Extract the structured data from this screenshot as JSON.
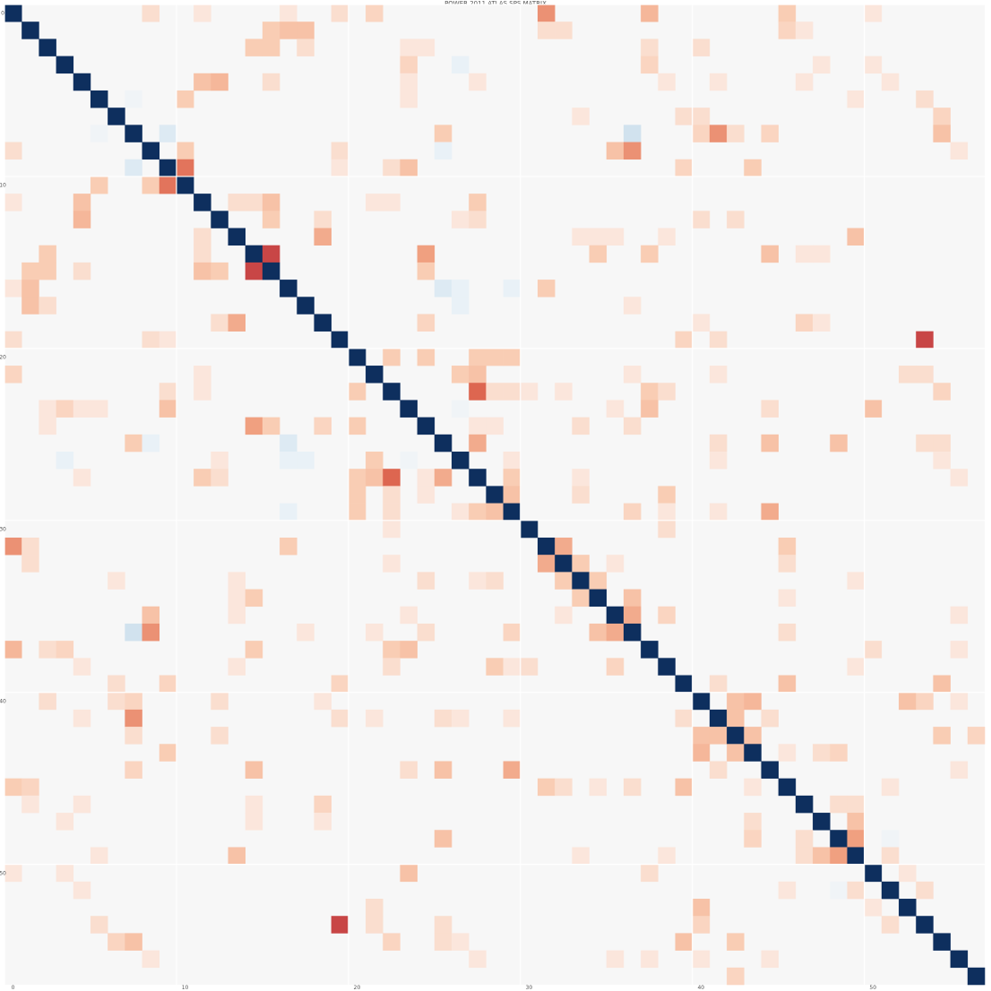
{
  "chart_data": {
    "type": "heatmap",
    "title": "POWER 2011 ATLAS SPS MATRIX",
    "n": 57,
    "x_ticks": [
      "0",
      "10",
      "20",
      "30",
      "40",
      "50"
    ],
    "y_ticks": [
      "0",
      "10",
      "20",
      "30",
      "40",
      "50"
    ],
    "diagonal_value": 1.0,
    "vlim": [
      -1,
      1
    ],
    "colorscale": [
      "#0e2f5e",
      "#d1e5f0",
      "#f7f7f7",
      "#fddbc7",
      "#f4a582",
      "#d6604d",
      "#c93f3f"
    ],
    "colors": {
      "background": "#f7f7f7",
      "diagonal": "#0e2f5e",
      "grid": "#ffffff"
    },
    "note_cells": "Off-diagonal values listed as [row, col, value]; symmetric. Unlisted cells are 0.",
    "cells": [
      [
        0,
        8,
        0.2
      ],
      [
        0,
        11,
        0.15
      ],
      [
        0,
        16,
        0.15
      ],
      [
        0,
        19,
        0.2
      ],
      [
        0,
        21,
        0.25
      ],
      [
        0,
        31,
        0.55
      ],
      [
        0,
        37,
        0.4
      ],
      [
        0,
        45,
        0.3
      ],
      [
        0,
        50,
        0.15
      ],
      [
        1,
        15,
        0.3
      ],
      [
        1,
        16,
        0.35
      ],
      [
        1,
        17,
        0.35
      ],
      [
        1,
        31,
        0.2
      ],
      [
        1,
        32,
        0.2
      ],
      [
        1,
        45,
        0.25
      ],
      [
        1,
        46,
        0.15
      ],
      [
        2,
        14,
        0.3
      ],
      [
        2,
        15,
        0.3
      ],
      [
        2,
        17,
        0.2
      ],
      [
        2,
        23,
        0.15
      ],
      [
        2,
        24,
        0.15
      ],
      [
        2,
        37,
        0.2
      ],
      [
        2,
        40,
        0.2
      ],
      [
        3,
        23,
        0.25
      ],
      [
        3,
        26,
        -0.1
      ],
      [
        3,
        37,
        0.25
      ],
      [
        3,
        47,
        0.15
      ],
      [
        3,
        50,
        0.15
      ],
      [
        4,
        11,
        0.35
      ],
      [
        4,
        12,
        0.4
      ],
      [
        4,
        15,
        0.2
      ],
      [
        4,
        23,
        0.15
      ],
      [
        4,
        27,
        0.15
      ],
      [
        4,
        38,
        0.15
      ],
      [
        4,
        41,
        0.15
      ],
      [
        4,
        46,
        0.15
      ],
      [
        4,
        51,
        0.15
      ],
      [
        5,
        7,
        -0.05
      ],
      [
        5,
        10,
        0.3
      ],
      [
        5,
        23,
        0.15
      ],
      [
        5,
        49,
        0.15
      ],
      [
        5,
        53,
        0.2
      ],
      [
        6,
        33,
        0.15
      ],
      [
        6,
        39,
        0.2
      ],
      [
        6,
        40,
        0.2
      ],
      [
        6,
        54,
        0.25
      ],
      [
        7,
        9,
        -0.15
      ],
      [
        7,
        25,
        0.3
      ],
      [
        7,
        36,
        -0.2
      ],
      [
        7,
        40,
        0.25
      ],
      [
        7,
        41,
        0.55
      ],
      [
        7,
        42,
        0.2
      ],
      [
        7,
        44,
        0.25
      ],
      [
        7,
        54,
        0.35
      ],
      [
        8,
        10,
        0.3
      ],
      [
        8,
        19,
        0.2
      ],
      [
        8,
        25,
        -0.1
      ],
      [
        8,
        35,
        0.35
      ],
      [
        8,
        36,
        0.55
      ],
      [
        8,
        55,
        0.15
      ],
      [
        9,
        10,
        0.65
      ],
      [
        9,
        19,
        0.15
      ],
      [
        9,
        22,
        0.2
      ],
      [
        9,
        23,
        0.35
      ],
      [
        9,
        39,
        0.25
      ],
      [
        9,
        43,
        0.3
      ],
      [
        11,
        13,
        0.2
      ],
      [
        11,
        14,
        0.2
      ],
      [
        11,
        15,
        0.35
      ],
      [
        11,
        21,
        0.15
      ],
      [
        11,
        22,
        0.15
      ],
      [
        11,
        27,
        0.3
      ],
      [
        12,
        15,
        0.3
      ],
      [
        12,
        18,
        0.2
      ],
      [
        12,
        26,
        0.15
      ],
      [
        12,
        27,
        0.2
      ],
      [
        12,
        40,
        0.2
      ],
      [
        12,
        42,
        0.2
      ],
      [
        13,
        18,
        0.45
      ],
      [
        13,
        33,
        0.15
      ],
      [
        13,
        34,
        0.15
      ],
      [
        13,
        35,
        0.15
      ],
      [
        13,
        38,
        0.15
      ],
      [
        13,
        49,
        0.35
      ],
      [
        14,
        15,
        0.85
      ],
      [
        14,
        24,
        0.5
      ],
      [
        14,
        34,
        0.3
      ],
      [
        14,
        37,
        0.3
      ],
      [
        14,
        44,
        0.35
      ],
      [
        14,
        46,
        0.15
      ],
      [
        14,
        47,
        0.15
      ],
      [
        15,
        24,
        0.3
      ],
      [
        16,
        25,
        -0.15
      ],
      [
        16,
        26,
        -0.1
      ],
      [
        16,
        29,
        -0.1
      ],
      [
        16,
        31,
        0.3
      ],
      [
        17,
        26,
        -0.1
      ],
      [
        17,
        36,
        0.15
      ],
      [
        18,
        24,
        0.25
      ],
      [
        18,
        40,
        0.15
      ],
      [
        18,
        46,
        0.25
      ],
      [
        18,
        47,
        0.15
      ],
      [
        19,
        39,
        0.25
      ],
      [
        19,
        41,
        0.2
      ],
      [
        19,
        53,
        0.85
      ],
      [
        20,
        22,
        0.3
      ],
      [
        20,
        24,
        0.3
      ],
      [
        20,
        27,
        0.3
      ],
      [
        20,
        28,
        0.3
      ],
      [
        20,
        29,
        0.3
      ],
      [
        21,
        26,
        0.3
      ],
      [
        21,
        27,
        0.35
      ],
      [
        21,
        36,
        0.15
      ],
      [
        21,
        41,
        0.15
      ],
      [
        21,
        52,
        0.2
      ],
      [
        21,
        53,
        0.2
      ],
      [
        22,
        27,
        0.7
      ],
      [
        22,
        28,
        0.2
      ],
      [
        22,
        29,
        0.2
      ],
      [
        22,
        30,
        0.15
      ],
      [
        22,
        32,
        0.15
      ],
      [
        22,
        37,
        0.3
      ],
      [
        22,
        38,
        0.2
      ],
      [
        22,
        54,
        0.25
      ],
      [
        23,
        26,
        -0.05
      ],
      [
        23,
        35,
        0.15
      ],
      [
        23,
        37,
        0.35
      ],
      [
        23,
        44,
        0.2
      ],
      [
        23,
        50,
        0.35
      ],
      [
        24,
        27,
        0.15
      ],
      [
        24,
        28,
        0.15
      ],
      [
        24,
        33,
        0.2
      ],
      [
        24,
        36,
        0.2
      ],
      [
        25,
        27,
        0.45
      ],
      [
        25,
        41,
        0.2
      ],
      [
        25,
        44,
        0.35
      ],
      [
        25,
        48,
        0.35
      ],
      [
        25,
        53,
        0.2
      ],
      [
        25,
        54,
        0.2
      ],
      [
        26,
        29,
        0.15
      ],
      [
        26,
        41,
        0.15
      ],
      [
        26,
        54,
        0.15
      ],
      [
        27,
        29,
        0.3
      ],
      [
        27,
        33,
        0.15
      ],
      [
        27,
        55,
        0.15
      ],
      [
        28,
        29,
        0.35
      ],
      [
        28,
        33,
        0.2
      ],
      [
        28,
        38,
        0.3
      ],
      [
        29,
        36,
        0.25
      ],
      [
        29,
        38,
        0.15
      ],
      [
        29,
        41,
        0.15
      ],
      [
        29,
        44,
        0.45
      ],
      [
        30,
        38,
        0.2
      ],
      [
        31,
        32,
        0.45
      ],
      [
        31,
        45,
        0.3
      ],
      [
        32,
        33,
        0.3
      ],
      [
        32,
        35,
        0.15
      ],
      [
        32,
        45,
        0.2
      ],
      [
        33,
        34,
        0.3
      ],
      [
        33,
        49,
        0.15
      ],
      [
        34,
        36,
        0.35
      ],
      [
        34,
        45,
        0.15
      ],
      [
        35,
        36,
        0.45
      ],
      [
        35,
        38,
        0.25
      ],
      [
        35,
        55,
        0.15
      ],
      [
        36,
        45,
        0.2
      ],
      [
        37,
        50,
        0.2
      ],
      [
        37,
        55,
        0.15
      ],
      [
        38,
        49,
        0.15
      ],
      [
        39,
        41,
        0.2
      ],
      [
        39,
        45,
        0.35
      ],
      [
        39,
        54,
        0.35
      ],
      [
        40,
        42,
        0.35
      ],
      [
        40,
        43,
        0.4
      ],
      [
        40,
        52,
        0.35
      ],
      [
        40,
        53,
        0.25
      ],
      [
        40,
        55,
        0.15
      ],
      [
        41,
        42,
        0.35
      ],
      [
        41,
        44,
        0.2
      ],
      [
        42,
        43,
        0.35
      ],
      [
        42,
        54,
        0.3
      ],
      [
        42,
        56,
        0.25
      ],
      [
        43,
        45,
        0.15
      ],
      [
        43,
        47,
        0.2
      ],
      [
        43,
        48,
        0.25
      ],
      [
        44,
        55,
        0.15
      ],
      [
        45,
        51,
        0.15
      ],
      [
        46,
        48,
        0.2
      ],
      [
        46,
        49,
        0.2
      ],
      [
        47,
        49,
        0.35
      ],
      [
        48,
        49,
        0.5
      ],
      [
        48,
        51,
        -0.05
      ],
      [
        49,
        51,
        0.2
      ],
      [
        50,
        52,
        0.15
      ],
      [
        51,
        53,
        0.2
      ]
    ]
  }
}
